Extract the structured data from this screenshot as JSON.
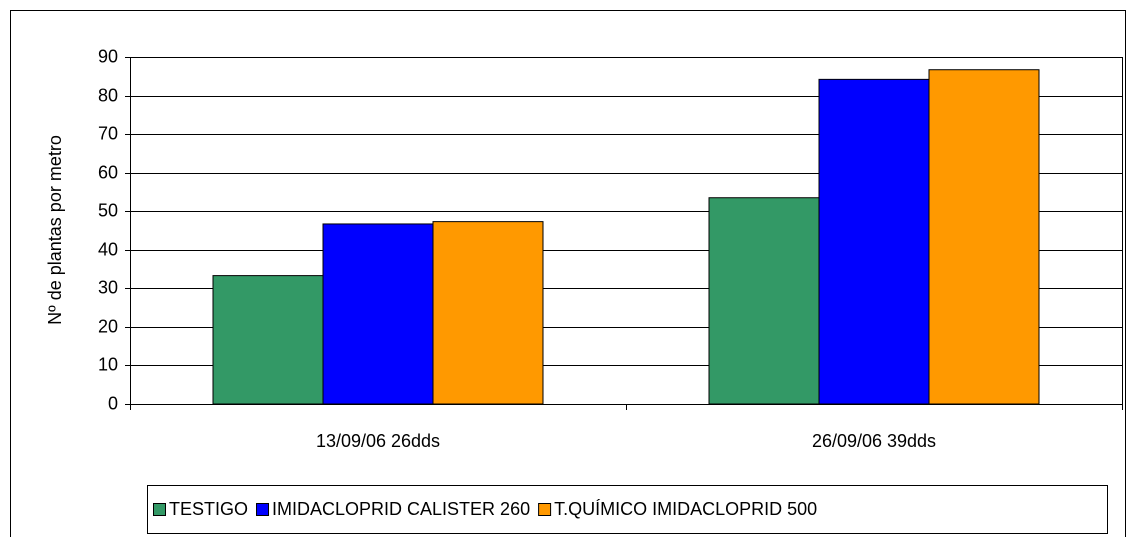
{
  "chart_data": {
    "type": "bar",
    "y_label": "Nº de plantas por metro",
    "categories": [
      "13/09/06 26dds",
      "26/09/06 39dds"
    ],
    "series": [
      {
        "name": "TESTIGO",
        "color": "#339966",
        "values": [
          33.3,
          53.5
        ]
      },
      {
        "name": "IMIDACLOPRID CALISTER 260",
        "color": "#0000ff",
        "values": [
          46.7,
          84.2
        ]
      },
      {
        "name": "T.QUÍMICO IMIDACLOPRID 500",
        "color": "#ff9900",
        "values": [
          47.3,
          86.7
        ]
      }
    ],
    "ylim": [
      0,
      90
    ],
    "yticks": [
      0,
      10,
      20,
      30,
      40,
      50,
      60,
      70,
      80,
      90
    ],
    "grid": true,
    "legend": "bottom"
  }
}
